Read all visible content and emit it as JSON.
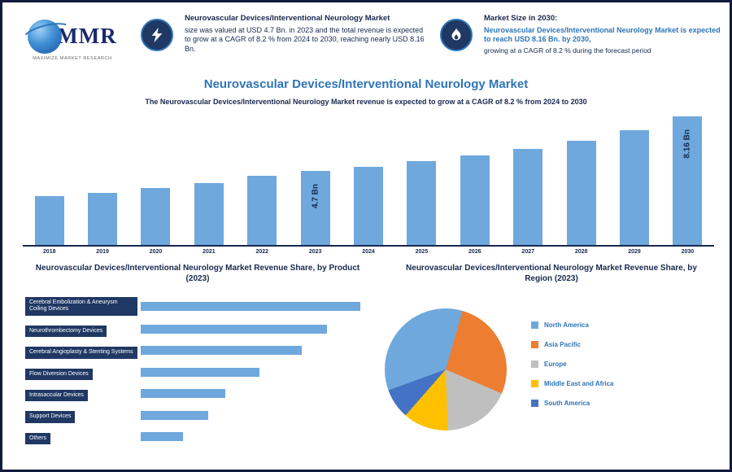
{
  "brand": {
    "logo_text": "MMR",
    "logo_caption": "MAXIMIZE MARKET RESEARCH"
  },
  "header": {
    "left": {
      "icon": "lightning",
      "title": "Neurovascular Devices/Interventional Neurology Market",
      "body": "size was valued at USD 4.7 Bn. in 2023 and the total revenue is expected to grow at a CAGR of 8.2 % from 2024 to 2030, reaching nearly USD 8.16 Bn."
    },
    "right": {
      "icon": "flame",
      "title": "Market Size in 2030:",
      "highlight": "Neurovascular Devices/Interventional Neurology Market is expected to reach USD 8.16 Bn. by 2030,",
      "note": "growing at a CAGR of 8.2 % during the forecast period"
    }
  },
  "main_title": "Neurovascular Devices/Interventional Neurology Market",
  "subtitle": "The Neurovascular Devices/Interventional Neurology Market revenue is expected to grow at a CAGR of 8.2 % from 2024 to 2030",
  "chart_data": [
    {
      "type": "bar",
      "title": "Neurovascular Devices/Interventional Neurology Market Revenue (USD Bn)",
      "categories": [
        "2018",
        "2019",
        "2020",
        "2021",
        "2022",
        "2023",
        "2024",
        "2025",
        "2026",
        "2027",
        "2028",
        "2029",
        "2030"
      ],
      "values": [
        3.1,
        3.3,
        3.6,
        3.9,
        4.4,
        4.7,
        4.95,
        5.3,
        5.7,
        6.1,
        6.6,
        7.3,
        8.16
      ],
      "unit": "USD Bn",
      "ylim": [
        0,
        8.5
      ],
      "bar_labels": {
        "2023": "4.7 Bn",
        "2030": "8.16 Bn"
      },
      "bar_color": "#6fa8dc",
      "grid": false
    },
    {
      "type": "bar",
      "orientation": "horizontal",
      "title": "Neurovascular Devices/Interventional Neurology Market Revenue Share, by Product (2023)",
      "categories": [
        "Cerebral Embolization & Aneurysm Coiling Devices",
        "Neurothrombectomy Devices",
        "Cerebral Angioplasty & Stenting Systems",
        "Flow Diversion Devices",
        "Intrasaccular Devices",
        "Support Devices",
        "Others"
      ],
      "values": [
        26,
        22,
        19,
        14,
        10,
        8,
        5
      ],
      "unit": "%",
      "bar_color": "#6fa8dc",
      "grid": false
    },
    {
      "type": "pie",
      "title": "Neurovascular Devices/Interventional Neurology Market Revenue Share, by Region (2023)",
      "labels": [
        "North America",
        "Asia Pacific",
        "Europe",
        "Middle East and Africa",
        "South America"
      ],
      "values": [
        35,
        27,
        18,
        12,
        8
      ],
      "colors": [
        "#6fa8dc",
        "#ed7d31",
        "#bfbfbf",
        "#ffc000",
        "#4472c4"
      ],
      "start_angle_deg": 250,
      "legend_position": "right"
    }
  ]
}
